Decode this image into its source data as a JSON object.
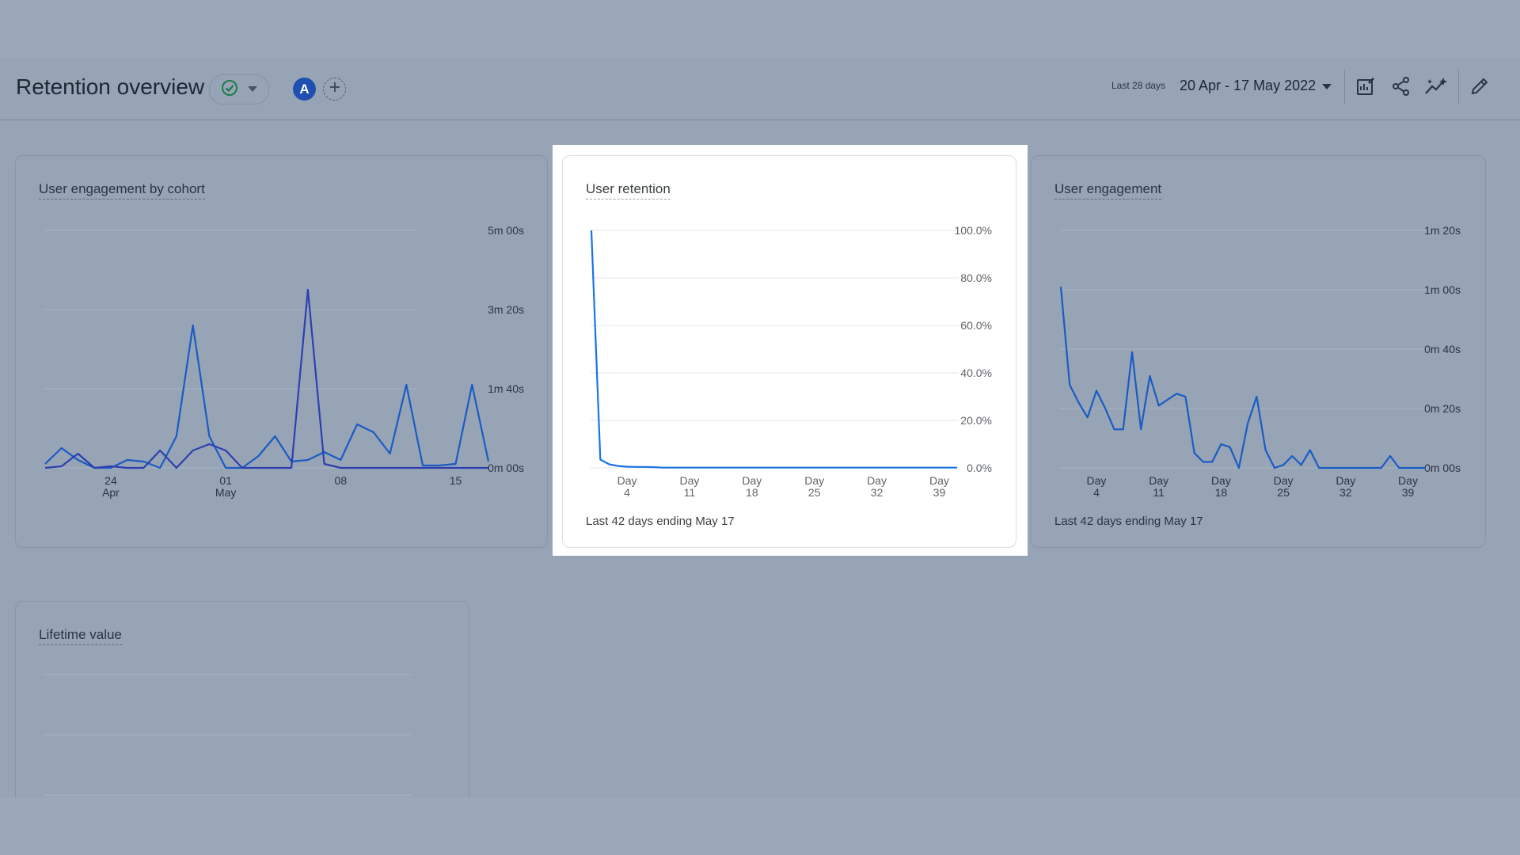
{
  "header": {
    "title": "Retention overview",
    "avatar_letter": "A",
    "date_prefix": "Last 28 days",
    "date_range": "20 Apr - 17 May 2022",
    "icons": [
      "check-circle-icon",
      "chevron-down-icon",
      "add-comparison-icon",
      "customize-report-icon",
      "share-icon",
      "insights-icon",
      "edit-icon"
    ]
  },
  "colors": {
    "line_primary": "#1a5bc4",
    "line_secondary": "#2d3fb0",
    "check_green": "#1e7a47",
    "highlight_line": "#1a73e8"
  },
  "cards": {
    "cohort": {
      "title": "User engagement by cohort",
      "yticks": [
        "5m 00s",
        "3m 20s",
        "1m 40s",
        "0m 00s"
      ]
    },
    "retention": {
      "title": "User retention",
      "yticks": [
        "100.0%",
        "80.0%",
        "60.0%",
        "40.0%",
        "20.0%",
        "0.0%"
      ],
      "footer": "Last 42 days ending May 17"
    },
    "engagement": {
      "title": "User engagement",
      "yticks": [
        "1m 20s",
        "1m 00s",
        "0m 40s",
        "0m 20s",
        "0m 00s"
      ],
      "footer": "Last 42 days ending May 17"
    },
    "ltv": {
      "title": "Lifetime value"
    }
  },
  "chart_data": [
    {
      "type": "line",
      "title": "User engagement by cohort",
      "x_tick_labels": [
        [
          "24",
          "Apr"
        ],
        [
          "01",
          "May"
        ],
        [
          "08",
          ""
        ],
        [
          "15",
          ""
        ]
      ],
      "x_tick_dates": [
        "2022-04-24",
        "2022-05-01",
        "2022-05-08",
        "2022-05-15"
      ],
      "x_start": "2022-04-20",
      "ylim": [
        0,
        300
      ],
      "yunit": "seconds",
      "series": [
        {
          "values": [
            5,
            25,
            10,
            0,
            0,
            10,
            8,
            0,
            40,
            180,
            40,
            0,
            0,
            15,
            40,
            8,
            10,
            20,
            10,
            55,
            45,
            18,
            105,
            3,
            3,
            5,
            105,
            8
          ]
        },
        {
          "values": [
            0,
            2,
            18,
            0,
            2,
            0,
            0,
            22,
            0,
            22,
            30,
            22,
            0,
            0,
            0,
            0,
            225,
            5,
            0,
            0,
            0,
            0,
            0,
            0,
            0,
            0,
            0,
            0
          ]
        }
      ]
    },
    {
      "type": "line",
      "title": "User retention",
      "x_tick_labels": [
        [
          "Day",
          "4"
        ],
        [
          "Day",
          "11"
        ],
        [
          "Day",
          "18"
        ],
        [
          "Day",
          "25"
        ],
        [
          "Day",
          "32"
        ],
        [
          "Day",
          "39"
        ]
      ],
      "x_tick_values": [
        4,
        11,
        18,
        25,
        32,
        39
      ],
      "xlim": [
        0,
        41
      ],
      "ylim": [
        0,
        100
      ],
      "yunit": "percent",
      "series": [
        {
          "x": [
            0,
            1,
            2,
            3,
            4,
            5,
            6,
            7,
            8,
            41
          ],
          "values": [
            100,
            3.5,
            1.5,
            0.8,
            0.5,
            0.4,
            0.4,
            0.3,
            0.1,
            0.1
          ]
        }
      ]
    },
    {
      "type": "line",
      "title": "User engagement",
      "x_tick_labels": [
        [
          "Day",
          "4"
        ],
        [
          "Day",
          "11"
        ],
        [
          "Day",
          "18"
        ],
        [
          "Day",
          "25"
        ],
        [
          "Day",
          "32"
        ],
        [
          "Day",
          "39"
        ]
      ],
      "x_tick_values": [
        4,
        11,
        18,
        25,
        32,
        39
      ],
      "xlim": [
        0,
        41
      ],
      "ylim": [
        0,
        80
      ],
      "yunit": "seconds",
      "series": [
        {
          "values": [
            61,
            28,
            22,
            17,
            26,
            20,
            13,
            13,
            39,
            13,
            31,
            21,
            23,
            25,
            24,
            5,
            2,
            2,
            8,
            7,
            0,
            15,
            24,
            6,
            0,
            1,
            4,
            1,
            6,
            0,
            0,
            0,
            0,
            0,
            0,
            0,
            0,
            4,
            0,
            0,
            0,
            0
          ]
        }
      ]
    }
  ]
}
